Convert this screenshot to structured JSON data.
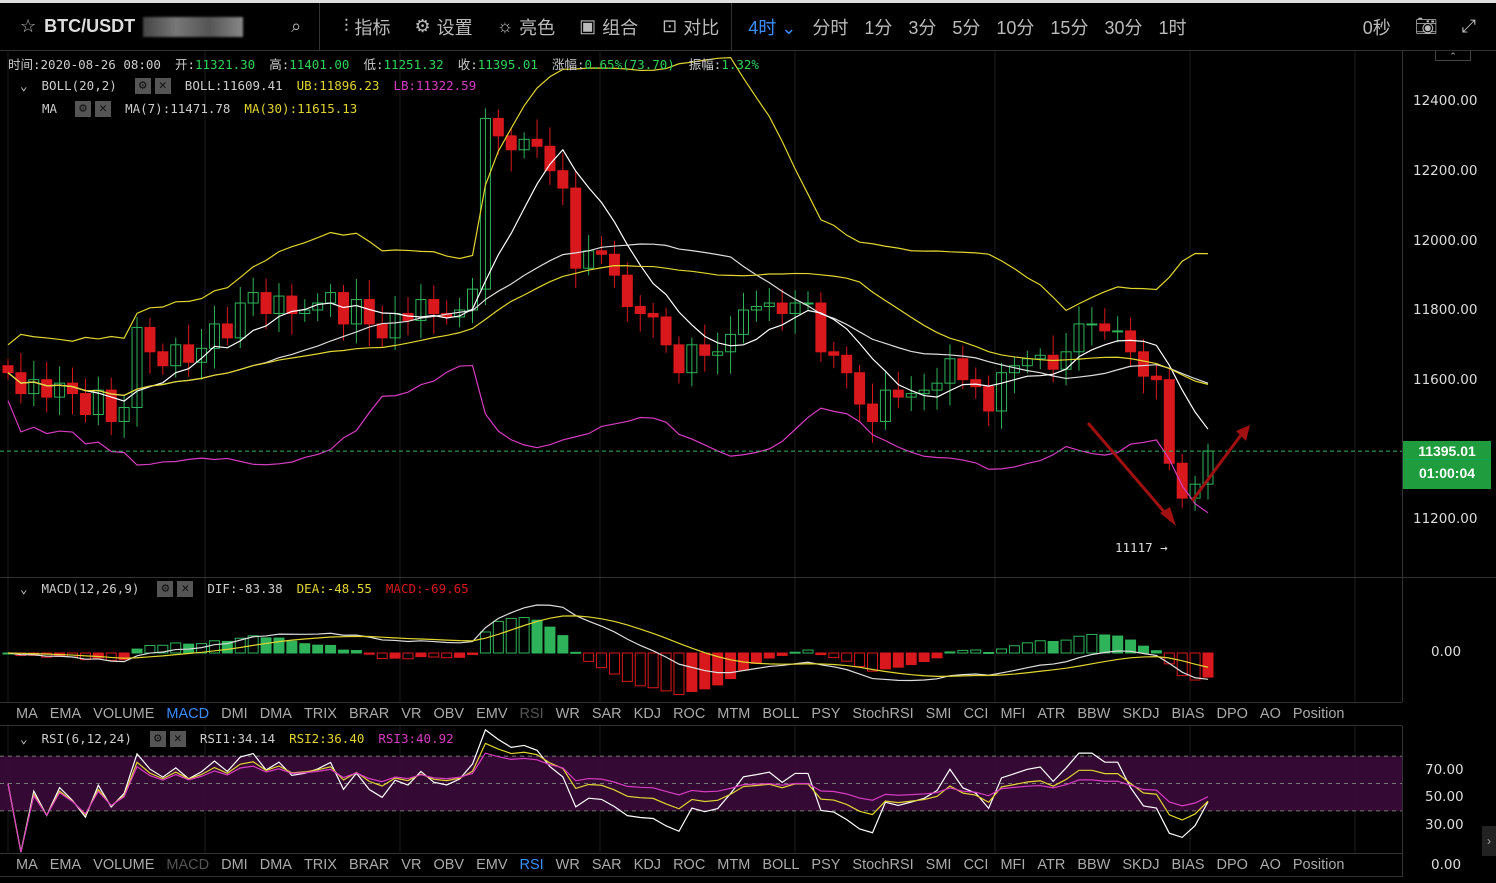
{
  "topbar": {
    "symbol": "BTC/USDT",
    "menu": [
      {
        "icon": "indicator-icon",
        "label": "指标"
      },
      {
        "icon": "gear-icon",
        "label": "设置"
      },
      {
        "icon": "sun-icon",
        "label": "亮色"
      },
      {
        "icon": "combo-icon",
        "label": "组合"
      },
      {
        "icon": "compare-icon",
        "label": "对比"
      }
    ],
    "timeframes": [
      "4时",
      "分时",
      "1分",
      "3分",
      "5分",
      "10分",
      "15分",
      "30分",
      "1时"
    ],
    "active_timeframe": "4时",
    "countdown": "0秒"
  },
  "info": {
    "time_label": "时间:",
    "time": "2020-08-26 08:00",
    "open_label": "开:",
    "open": "11321.30",
    "high_label": "高:",
    "high": "11401.00",
    "low_label": "低:",
    "low": "11251.32",
    "close_label": "收:",
    "close": "11395.01",
    "change_label": "涨幅:",
    "change": "0.65%(73.70)",
    "amp_label": "振幅:",
    "amp": "1.32%"
  },
  "boll": {
    "name": "BOLL(20,2)",
    "boll": "BOLL:11609.41",
    "ub": "UB:11896.23",
    "lb": "LB:11322.59"
  },
  "ma": {
    "name": "MA",
    "ma7": "MA(7):11471.78",
    "ma30": "MA(30):11615.13"
  },
  "macd": {
    "name": "MACD(12,26,9)",
    "dif": "DIF:-83.38",
    "dea": "DEA:-48.55",
    "macd": "MACD:-69.65",
    "axis": "0.00"
  },
  "rsi": {
    "name": "RSI(6,12,24)",
    "rsi1": "RSI1:34.14",
    "rsi2": "RSI2:36.40",
    "rsi3": "RSI3:40.92",
    "axis": [
      "70.00",
      "50.00",
      "30.00",
      "0.00"
    ]
  },
  "price_axis": [
    "12400.00",
    "12200.00",
    "12000.00",
    "11800.00",
    "11600.00",
    "11200.00"
  ],
  "current_price": "11395.01",
  "bar_timer": "01:00:04",
  "low_marker": "11117 →",
  "indicator_tabs": [
    "MA",
    "EMA",
    "VOLUME",
    "MACD",
    "DMI",
    "DMA",
    "TRIX",
    "BRAR",
    "VR",
    "OBV",
    "EMV",
    "RSI",
    "WR",
    "SAR",
    "KDJ",
    "ROC",
    "MTM",
    "BOLL",
    "PSY",
    "StochRSI",
    "SMI",
    "CCI",
    "MFI",
    "ATR",
    "BBW",
    "SKDJ",
    "BIAS",
    "DPO",
    "AO",
    "Position"
  ],
  "colors": {
    "up": "#2fb35a",
    "down": "#d8181c",
    "accent": "#3b8cff",
    "yellow": "#e0d530",
    "pink": "#d63cc0",
    "white": "#e0e0e0"
  },
  "chart_data": {
    "type": "candlestick",
    "price_range": [
      11100,
      12500
    ],
    "closes": [
      11620,
      11560,
      11600,
      11550,
      11590,
      11560,
      11500,
      11570,
      11480,
      11520,
      11750,
      11680,
      11640,
      11700,
      11650,
      11690,
      11760,
      11720,
      11820,
      11850,
      11790,
      11840,
      11790,
      11800,
      11820,
      11850,
      11760,
      11830,
      11760,
      11720,
      11790,
      11770,
      11830,
      11790,
      11780,
      11800,
      11860,
      12350,
      12300,
      12260,
      12290,
      12270,
      12200,
      12150,
      11920,
      11970,
      11960,
      11900,
      11810,
      11790,
      11780,
      11700,
      11620,
      11700,
      11670,
      11680,
      11730,
      11800,
      11810,
      11820,
      11790,
      11820,
      11820,
      11680,
      11670,
      11620,
      11530,
      11480,
      11570,
      11550,
      11560,
      11570,
      11590,
      11660,
      11600,
      11580,
      11510,
      11620,
      11640,
      11660,
      11670,
      11630,
      11680,
      11760,
      11760,
      11740,
      11740,
      11680,
      11610,
      11600,
      11360,
      11260,
      11300,
      11395
    ]
  }
}
